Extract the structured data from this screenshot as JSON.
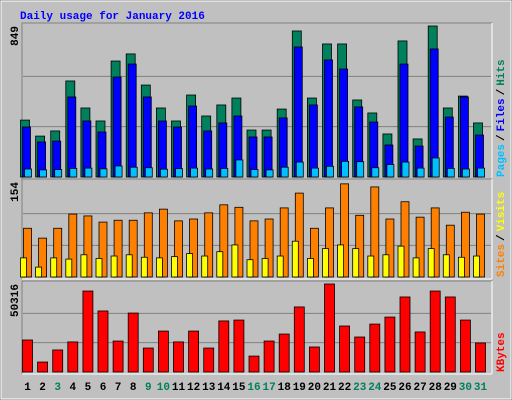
{
  "chart_data": {
    "type": "bar",
    "title": "Daily usage for January 2016",
    "categories": [
      "1",
      "2",
      "3",
      "4",
      "5",
      "6",
      "7",
      "8",
      "9",
      "10",
      "11",
      "12",
      "13",
      "14",
      "15",
      "16",
      "17",
      "18",
      "19",
      "20",
      "21",
      "22",
      "23",
      "24",
      "25",
      "26",
      "27",
      "28",
      "29",
      "30",
      "31"
    ],
    "highlight": [
      false,
      false,
      true,
      false,
      false,
      false,
      false,
      false,
      true,
      true,
      false,
      false,
      false,
      false,
      false,
      true,
      true,
      false,
      false,
      false,
      false,
      false,
      true,
      true,
      false,
      false,
      false,
      false,
      false,
      true,
      true
    ],
    "highlight_color": "#00805c",
    "legend_separator": "/",
    "panels": [
      {
        "ylim": [
          0,
          849
        ],
        "yticks": [
          849
        ],
        "series": [
          {
            "name": "Hits",
            "color": "#00805c",
            "values": [
              320,
              230,
              259,
              540,
              388,
              315,
              652,
              692,
              517,
              388,
              315,
              461,
              343,
              405,
              444,
              264,
              264,
              382,
              821,
              444,
              748,
              748,
              433,
              360,
              242,
              765,
              214,
              849,
              388,
              455,
              304
            ]
          },
          {
            "name": "Files",
            "color": "#0000ff",
            "values": [
              281,
              197,
              202,
              450,
              315,
              253,
              562,
              635,
              450,
              315,
              281,
              399,
              259,
              304,
              343,
              225,
              225,
              332,
              731,
              405,
              658,
              607,
              394,
              309,
              180,
              635,
              174,
              720,
              337,
              450,
              236
            ]
          },
          {
            "name": "Pages",
            "color": "#00c0ff",
            "values": [
              45,
              40,
              42,
              48,
              50,
              46,
              62,
              55,
              52,
              44,
              47,
              50,
              45,
              48,
              96,
              42,
              40,
              55,
              84,
              50,
              60,
              88,
              86,
              52,
              70,
              84,
              50,
              107,
              48,
              45,
              50
            ]
          }
        ]
      },
      {
        "ylim": [
          0,
          154
        ],
        "yticks": [
          154
        ],
        "series": [
          {
            "name": "Visits",
            "color": "#ffff00",
            "values": [
              31,
              16,
              31,
              29,
              36,
              30,
              34,
              36,
              32,
              31,
              33,
              38,
              34,
              41,
              52,
              28,
              30,
              34,
              58,
              30,
              46,
              52,
              46,
              34,
              36,
              50,
              31,
              46,
              36,
              32,
              34
            ]
          },
          {
            "name": "Sites",
            "color": "#ff8000",
            "values": [
              79,
              63,
              79,
              102,
              99,
              89,
              92,
              92,
              104,
              110,
              91,
              94,
              104,
              117,
              113,
              91,
              94,
              112,
              136,
              79,
              112,
              151,
              100,
              146,
              94,
              122,
              97,
              112,
              84,
              105,
              102
            ]
          }
        ]
      },
      {
        "ylim": [
          0,
          50316
        ],
        "yticks": [
          50316
        ],
        "series": [
          {
            "name": "KBytes",
            "color": "#ff0000",
            "values": [
              18300,
              5700,
              12600,
              17200,
              46300,
              34900,
              17700,
              33700,
              13700,
              23400,
              17200,
              23400,
              13700,
              29200,
              29700,
              9100,
              17700,
              21700,
              37200,
              14300,
              50316,
              26300,
              20000,
              27400,
              31400,
              42900,
              22900,
              46300,
              42900,
              29700,
              16600
            ]
          }
        ]
      }
    ]
  }
}
